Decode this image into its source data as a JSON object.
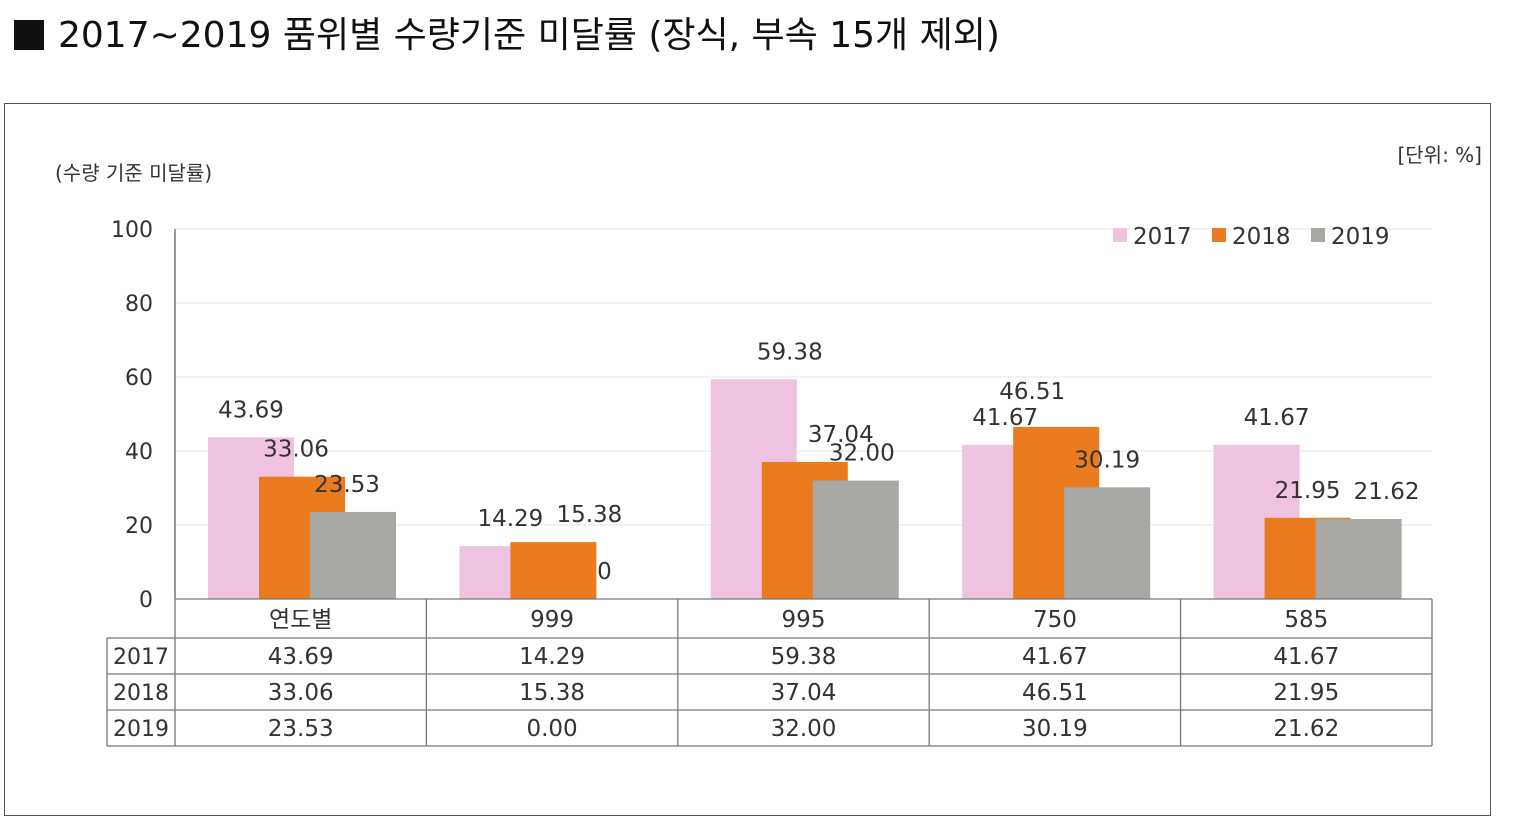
{
  "page_title": "2017~2019 품위별 수량기준 미달률 (장식, 부속 15개 제외)",
  "chart_data": {
    "type": "bar",
    "title": "",
    "ylabel": "(수량 기준 미달률)",
    "unit_label": "[단위: %]",
    "ylim": [
      0,
      100
    ],
    "yticks": [
      0,
      20,
      40,
      60,
      80,
      100
    ],
    "grid": true,
    "legend_position": "top-right",
    "categories": [
      "연도별",
      "999",
      "995",
      "750",
      "585"
    ],
    "series": [
      {
        "name": "2017",
        "color": "#efc3e0",
        "values": [
          43.69,
          14.29,
          59.38,
          41.67,
          41.67
        ],
        "labels": [
          "43.69",
          "14.29",
          "59.38",
          "41.67",
          "41.67"
        ],
        "table": [
          "43.69",
          "14.29",
          "59.38",
          "41.67",
          "41.67"
        ]
      },
      {
        "name": "2018",
        "color": "#ea7b1e",
        "values": [
          33.06,
          15.38,
          37.04,
          46.51,
          21.95
        ],
        "labels": [
          "33.06",
          "15.38",
          "37.04",
          "46.51",
          "21.95"
        ],
        "table": [
          "33.06",
          "15.38",
          "37.04",
          "46.51",
          "21.95"
        ]
      },
      {
        "name": "2019",
        "color": "#a8a8a4",
        "values": [
          23.53,
          0,
          32.0,
          30.19,
          21.62
        ],
        "labels": [
          "23.53",
          "0",
          "32.00",
          "30.19",
          "21.62"
        ],
        "table": [
          "23.53",
          "0.00",
          "32.00",
          "30.19",
          "21.62"
        ]
      }
    ]
  }
}
